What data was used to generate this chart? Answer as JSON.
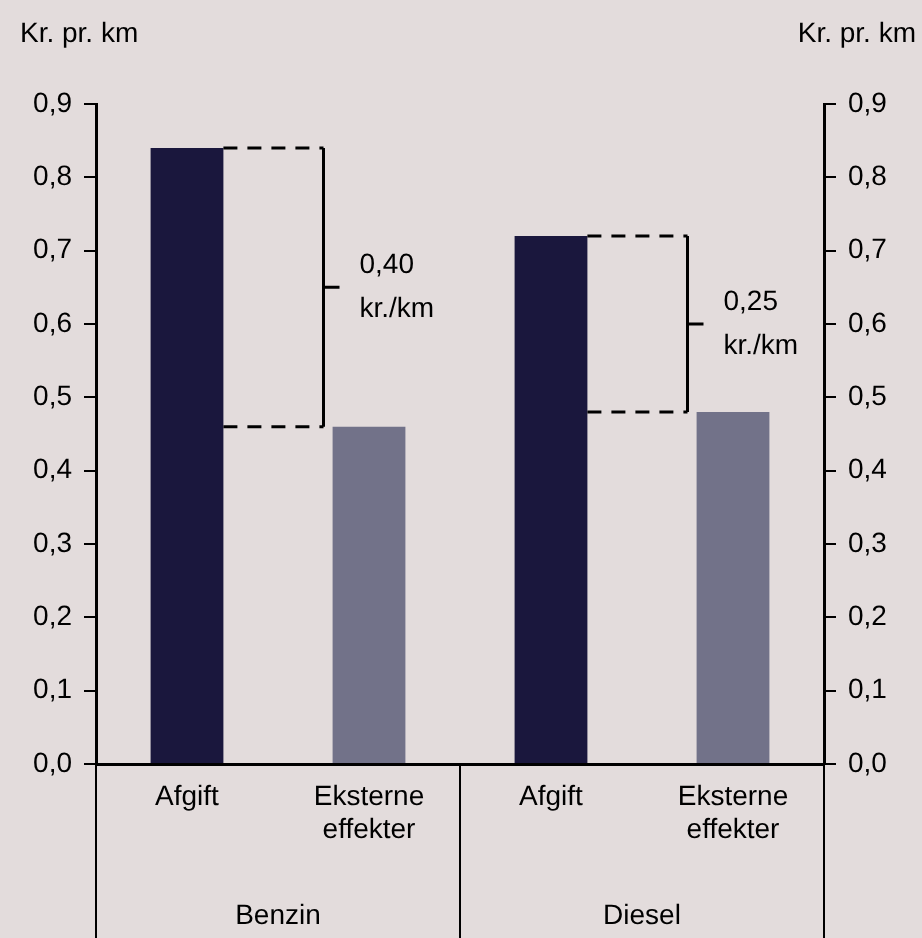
{
  "chart_data": {
    "type": "bar",
    "ylabel": "Kr. pr. km",
    "y2label": "Kr. pr. km",
    "categories": [
      "Afgift",
      "Eksterne effekter",
      "Afgift",
      "Eksterne effekter"
    ],
    "values": [
      0.84,
      0.46,
      0.72,
      0.48
    ],
    "colors": [
      "#1a173d",
      "#727289",
      "#1a173d",
      "#727289"
    ],
    "ylim": [
      0,
      0.9
    ],
    "yticks": [
      {
        "value": 0,
        "label": "0,0"
      },
      {
        "value": 0.1,
        "label": "0,1"
      },
      {
        "value": 0.2,
        "label": "0,2"
      },
      {
        "value": 0.3,
        "label": "0,3"
      },
      {
        "value": 0.4,
        "label": "0,4"
      },
      {
        "value": 0.5,
        "label": "0,5"
      },
      {
        "value": 0.6,
        "label": "0,6"
      },
      {
        "value": 0.7,
        "label": "0,7"
      },
      {
        "value": 0.8,
        "label": "0,8"
      },
      {
        "value": 0.9,
        "label": "0,9"
      }
    ],
    "y2lim": [
      0,
      0.9
    ],
    "y2ticks": [
      {
        "value": 0,
        "label": "0,0"
      },
      {
        "value": 0.1,
        "label": "0,1"
      },
      {
        "value": 0.2,
        "label": "0,2"
      },
      {
        "value": 0.3,
        "label": "0,3"
      },
      {
        "value": 0.4,
        "label": "0,4"
      },
      {
        "value": 0.5,
        "label": "0,5"
      },
      {
        "value": 0.6,
        "label": "0,6"
      },
      {
        "value": 0.7,
        "label": "0,7"
      },
      {
        "value": 0.8,
        "label": "0,8"
      },
      {
        "value": 0.9,
        "label": "0,9"
      }
    ],
    "annotations": [
      "0,40 kr./km",
      "0,25 kr./km",
      "Benzin",
      "Diesel"
    ],
    "grid": false,
    "legend": false
  }
}
